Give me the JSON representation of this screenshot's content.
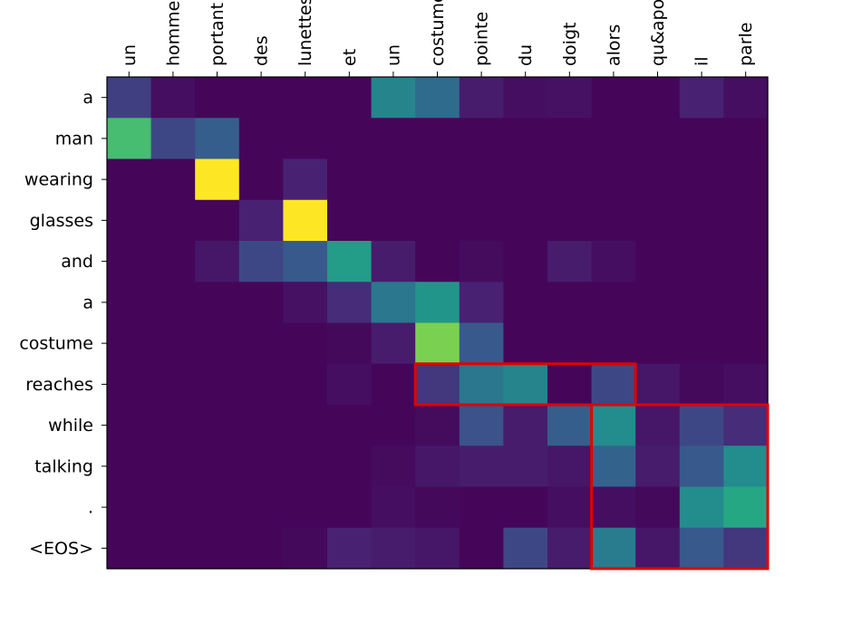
{
  "chart_data": {
    "type": "heatmap",
    "colormap": "viridis",
    "x_labels": [
      "un",
      "homme",
      "portant",
      "des",
      "lunettes",
      "et",
      "un",
      "costume",
      "pointe",
      "du",
      "doigt",
      "alors",
      "qu&apos",
      "il",
      "parle"
    ],
    "y_labels": [
      "a",
      "man",
      "wearing",
      "glasses",
      "and",
      "a",
      "costume",
      "reaches",
      "while",
      "talking",
      ".",
      "<EOS>"
    ],
    "values": [
      [
        0.2,
        0.05,
        0.02,
        0.02,
        0.02,
        0.02,
        0.45,
        0.35,
        0.1,
        0.05,
        0.06,
        0.02,
        0.02,
        0.12,
        0.05
      ],
      [
        0.7,
        0.22,
        0.3,
        0.02,
        0.02,
        0.02,
        0.02,
        0.02,
        0.02,
        0.02,
        0.02,
        0.02,
        0.02,
        0.02,
        0.02
      ],
      [
        0.02,
        0.02,
        1.0,
        0.02,
        0.12,
        0.02,
        0.02,
        0.02,
        0.02,
        0.02,
        0.02,
        0.02,
        0.02,
        0.02,
        0.02
      ],
      [
        0.02,
        0.02,
        0.02,
        0.12,
        1.0,
        0.02,
        0.02,
        0.02,
        0.02,
        0.02,
        0.02,
        0.02,
        0.02,
        0.02,
        0.02
      ],
      [
        0.02,
        0.02,
        0.08,
        0.22,
        0.28,
        0.55,
        0.1,
        0.02,
        0.04,
        0.02,
        0.1,
        0.05,
        0.02,
        0.02,
        0.02
      ],
      [
        0.02,
        0.02,
        0.02,
        0.02,
        0.06,
        0.15,
        0.4,
        0.52,
        0.12,
        0.02,
        0.02,
        0.02,
        0.02,
        0.02,
        0.02
      ],
      [
        0.02,
        0.02,
        0.02,
        0.02,
        0.02,
        0.03,
        0.1,
        0.8,
        0.28,
        0.02,
        0.02,
        0.02,
        0.02,
        0.02,
        0.02
      ],
      [
        0.02,
        0.02,
        0.02,
        0.02,
        0.02,
        0.05,
        0.02,
        0.18,
        0.4,
        0.45,
        0.02,
        0.22,
        0.08,
        0.03,
        0.05
      ],
      [
        0.02,
        0.02,
        0.02,
        0.02,
        0.02,
        0.02,
        0.02,
        0.04,
        0.25,
        0.1,
        0.3,
        0.48,
        0.08,
        0.22,
        0.15
      ],
      [
        0.02,
        0.02,
        0.02,
        0.02,
        0.02,
        0.02,
        0.04,
        0.08,
        0.1,
        0.1,
        0.08,
        0.32,
        0.1,
        0.28,
        0.48
      ],
      [
        0.02,
        0.02,
        0.02,
        0.02,
        0.02,
        0.02,
        0.05,
        0.03,
        0.02,
        0.02,
        0.05,
        0.05,
        0.03,
        0.48,
        0.6
      ],
      [
        0.02,
        0.02,
        0.02,
        0.02,
        0.03,
        0.12,
        0.1,
        0.08,
        0.02,
        0.22,
        0.1,
        0.42,
        0.08,
        0.28,
        0.18
      ]
    ],
    "highlight_color": "#e00000",
    "highlight_boxes": [
      {
        "rows": [
          7,
          7
        ],
        "cols": [
          7,
          11
        ]
      },
      {
        "rows": [
          8,
          11
        ],
        "cols": [
          11,
          14
        ]
      }
    ],
    "grid": false
  }
}
